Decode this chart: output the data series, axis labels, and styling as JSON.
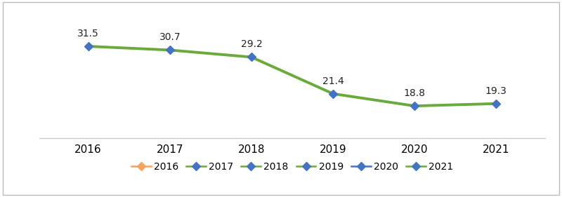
{
  "years": [
    2016,
    2017,
    2018,
    2019,
    2020,
    2021
  ],
  "values": [
    31.5,
    30.7,
    29.2,
    21.4,
    18.8,
    19.3
  ],
  "line_color": "#6aaa3a",
  "line_width": 2.8,
  "marker": "D",
  "marker_size": 6,
  "marker_edge_color": "#4472c4",
  "marker_face_color": "#4472c4",
  "label_fontsize": 10,
  "tick_fontsize": 11,
  "background_color": "#ffffff",
  "ylim": [
    12,
    38
  ],
  "legend_entries": [
    {
      "label": "2016",
      "line_color": "#f4a460",
      "marker_color": "#f4a460"
    },
    {
      "label": "2017",
      "line_color": "#6aaa3a",
      "marker_color": "#4472c4"
    },
    {
      "label": "2018",
      "line_color": "#6aaa3a",
      "marker_color": "#4472c4"
    },
    {
      "label": "2019",
      "line_color": "#6aaa3a",
      "marker_color": "#4472c4"
    },
    {
      "label": "2020",
      "line_color": "#4472c4",
      "marker_color": "#4472c4"
    },
    {
      "label": "2021",
      "line_color": "#6aaa3a",
      "marker_color": "#4472c4"
    }
  ],
  "border_color": "#bbbbbb",
  "separator_color": "#cccccc"
}
